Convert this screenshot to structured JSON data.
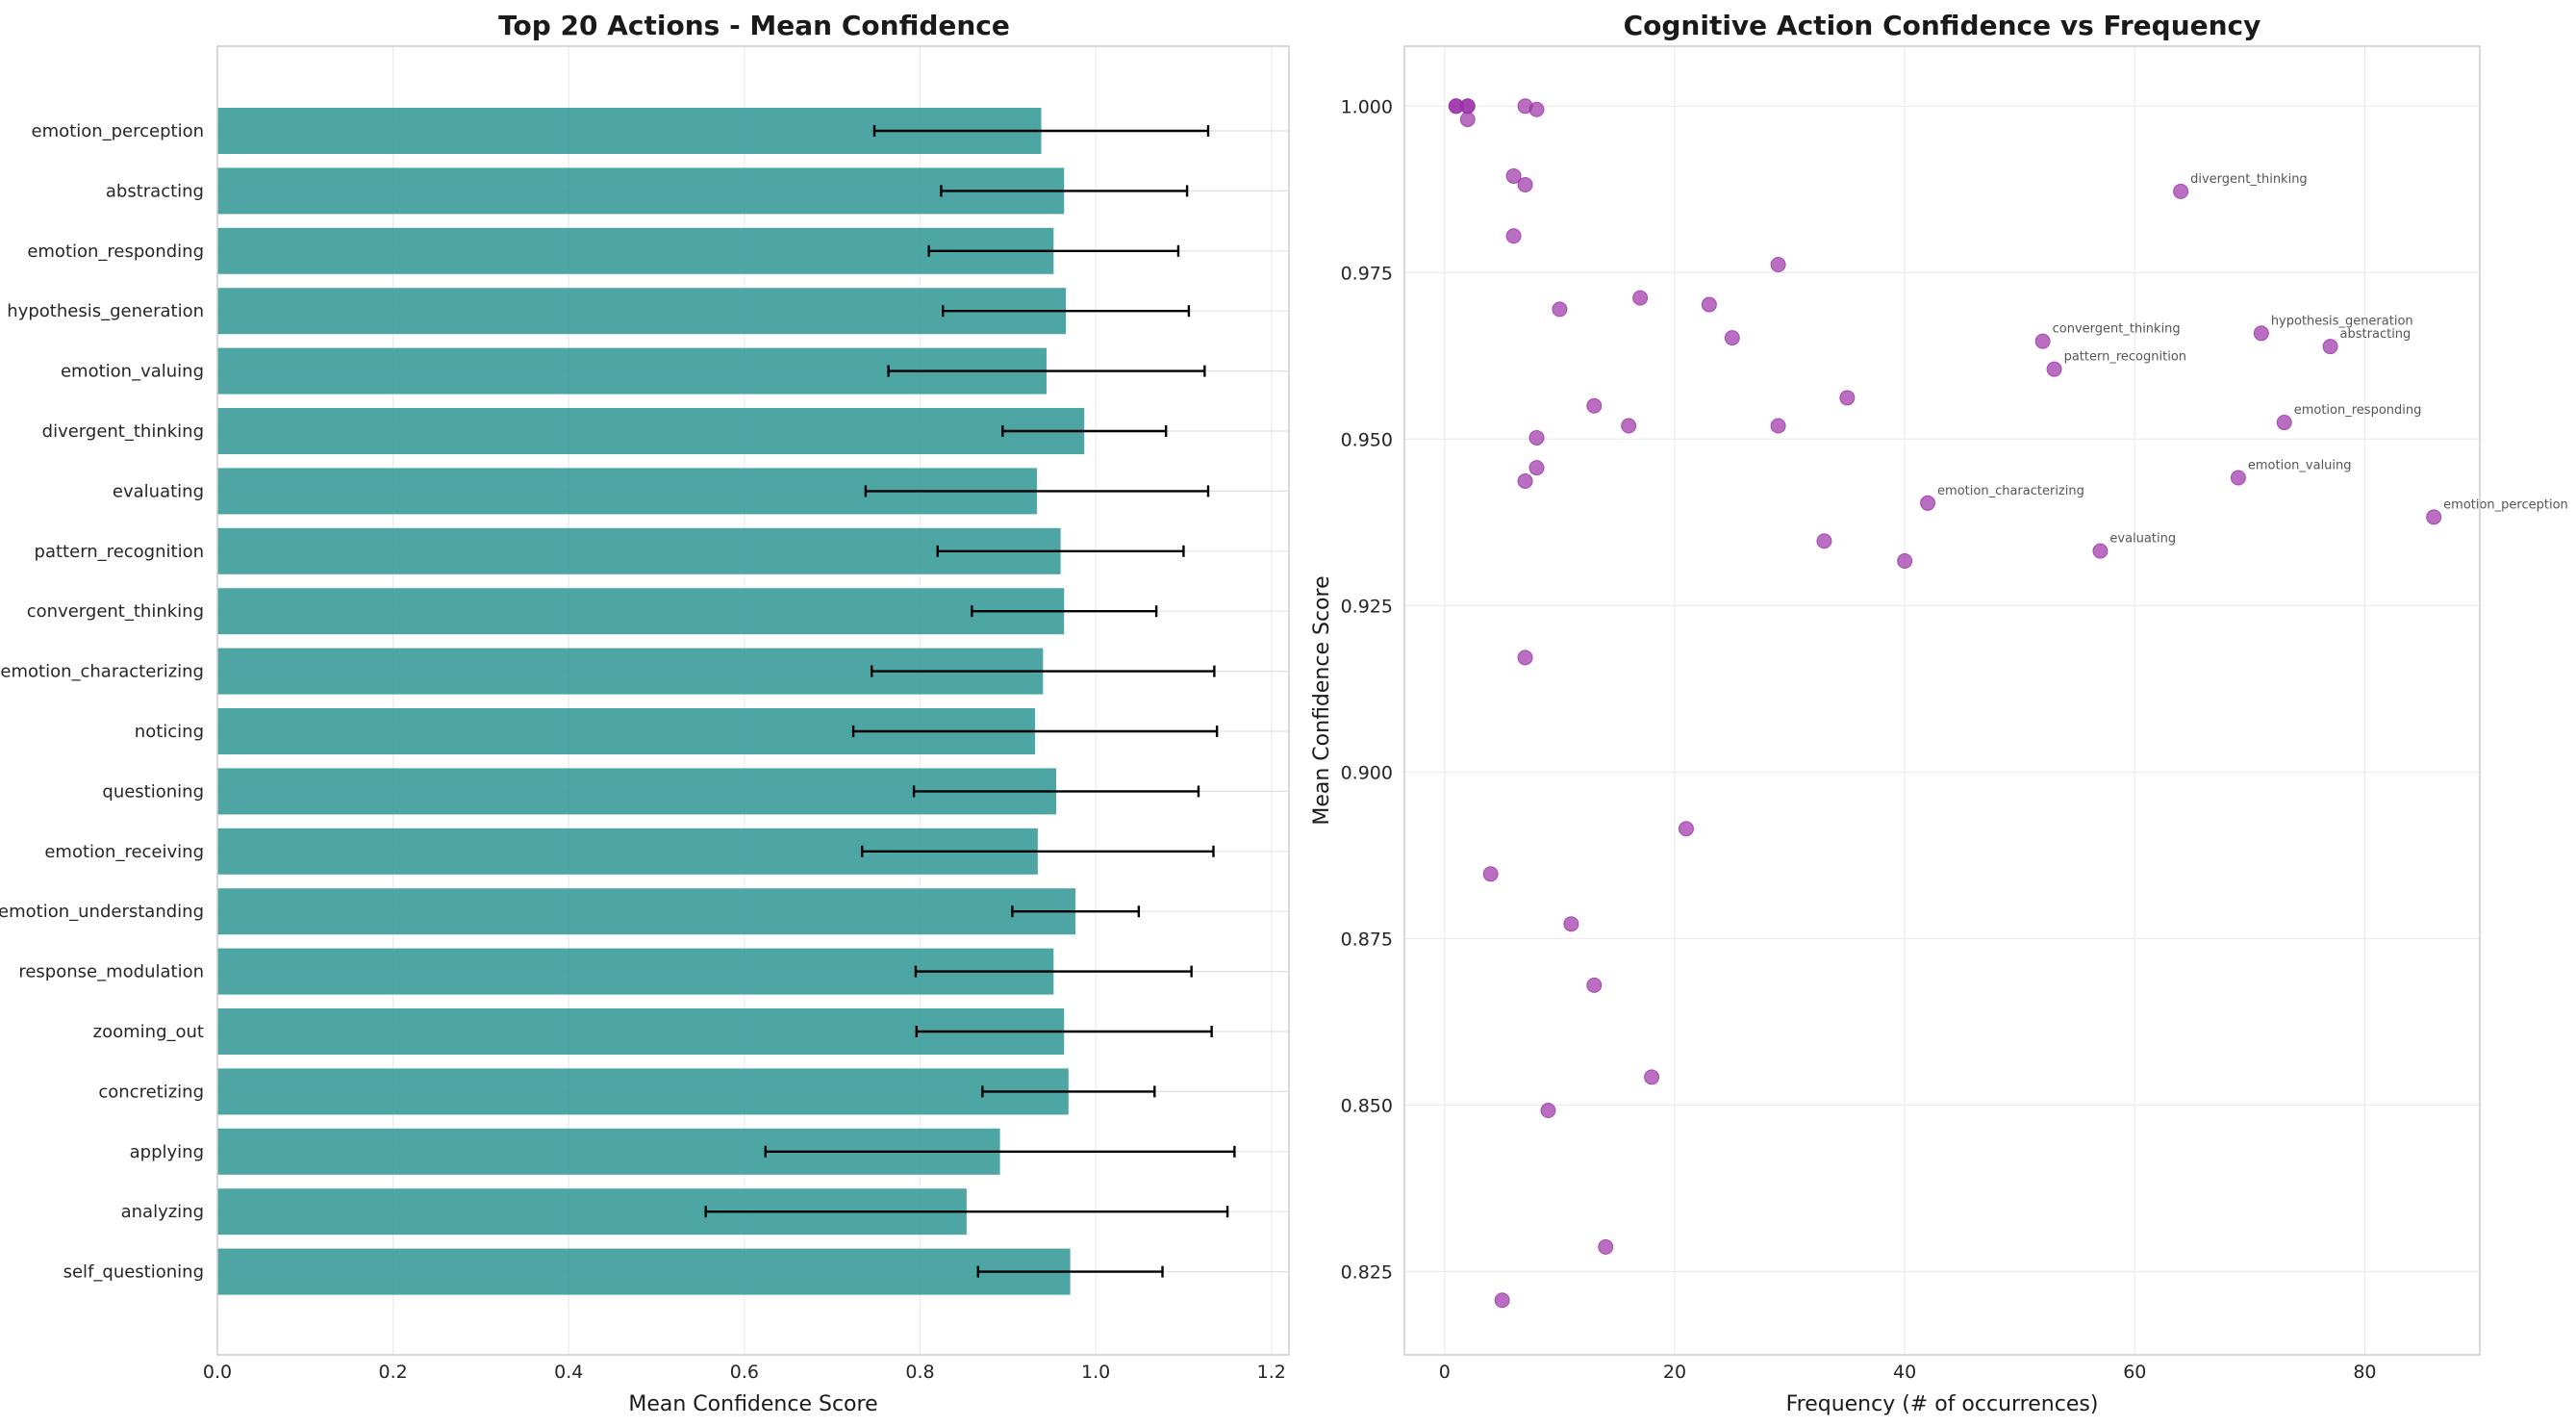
{
  "chart_data": [
    {
      "type": "bar",
      "orientation": "horizontal",
      "title": "Top 20 Actions - Mean Confidence",
      "xlabel": "Mean Confidence Score",
      "ylabel": "",
      "xlim": [
        0,
        1.22
      ],
      "xticks": [
        0.0,
        0.2,
        0.4,
        0.6,
        0.8,
        1.0,
        1.2
      ],
      "xtick_labels": [
        "0.0",
        "0.2",
        "0.4",
        "0.6",
        "0.8",
        "1.0",
        "1.2"
      ],
      "grid": true,
      "bar_color": "#3a9b9a",
      "categories": [
        "emotion_perception",
        "abstracting",
        "emotion_responding",
        "hypothesis_generation",
        "emotion_valuing",
        "divergent_thinking",
        "evaluating",
        "pattern_recognition",
        "convergent_thinking",
        "emotion_characterizing",
        "noticing",
        "questioning",
        "emotion_receiving",
        "emotion_understanding",
        "response_modulation",
        "zooming_out",
        "concretizing",
        "applying",
        "analyzing",
        "self_questioning"
      ],
      "values": [
        0.938,
        0.964,
        0.952,
        0.966,
        0.944,
        0.987,
        0.933,
        0.96,
        0.964,
        0.94,
        0.931,
        0.955,
        0.934,
        0.977,
        0.952,
        0.964,
        0.969,
        0.891,
        0.853,
        0.971
      ],
      "errors": [
        0.19,
        0.14,
        0.142,
        0.14,
        0.18,
        0.093,
        0.195,
        0.14,
        0.105,
        0.195,
        0.207,
        0.162,
        0.2,
        0.072,
        0.157,
        0.168,
        0.098,
        0.267,
        0.297,
        0.105
      ]
    },
    {
      "type": "scatter",
      "title": "Cognitive Action Confidence vs Frequency",
      "xlabel": "Frequency (# of occurrences)",
      "ylabel": "Mean Confidence Score",
      "xlim": [
        -3.5,
        90
      ],
      "ylim": [
        0.8125,
        1.009
      ],
      "xticks": [
        0,
        20,
        40,
        60,
        80
      ],
      "xtick_labels": [
        "0",
        "20",
        "40",
        "60",
        "80"
      ],
      "yticks": [
        0.825,
        0.85,
        0.875,
        0.9,
        0.925,
        0.95,
        0.975,
        1.0
      ],
      "ytick_labels": [
        "0.825",
        "0.850",
        "0.875",
        "0.900",
        "0.925",
        "0.950",
        "0.975",
        "1.000"
      ],
      "grid": true,
      "marker_color": "#9b30a8",
      "points": [
        {
          "x": 1,
          "y": 1.0
        },
        {
          "x": 2,
          "y": 1.0
        },
        {
          "x": 1,
          "y": 1.0
        },
        {
          "x": 2,
          "y": 1.0
        },
        {
          "x": 7,
          "y": 1.0
        },
        {
          "x": 8,
          "y": 0.9995
        },
        {
          "x": 2,
          "y": 0.998
        },
        {
          "x": 6,
          "y": 0.9895
        },
        {
          "x": 7,
          "y": 0.9882
        },
        {
          "x": 6,
          "y": 0.9805
        },
        {
          "x": 29,
          "y": 0.9762
        },
        {
          "x": 17,
          "y": 0.9712
        },
        {
          "x": 23,
          "y": 0.9702
        },
        {
          "x": 10,
          "y": 0.9695
        },
        {
          "x": 25,
          "y": 0.9652
        },
        {
          "x": 35,
          "y": 0.9562
        },
        {
          "x": 13,
          "y": 0.955
        },
        {
          "x": 16,
          "y": 0.952
        },
        {
          "x": 29,
          "y": 0.952
        },
        {
          "x": 8,
          "y": 0.9502
        },
        {
          "x": 8,
          "y": 0.9457
        },
        {
          "x": 7,
          "y": 0.9437
        },
        {
          "x": 33,
          "y": 0.9347
        },
        {
          "x": 40,
          "y": 0.9317
        },
        {
          "x": 7,
          "y": 0.9172
        },
        {
          "x": 21,
          "y": 0.8915
        },
        {
          "x": 4,
          "y": 0.8847
        },
        {
          "x": 11,
          "y": 0.8772
        },
        {
          "x": 13,
          "y": 0.868
        },
        {
          "x": 18,
          "y": 0.8542
        },
        {
          "x": 9,
          "y": 0.8492
        },
        {
          "x": 14,
          "y": 0.8287
        },
        {
          "x": 5,
          "y": 0.8207
        },
        {
          "x": 64,
          "y": 0.9872,
          "label": "divergent_thinking"
        },
        {
          "x": 52,
          "y": 0.9647,
          "label": "convergent_thinking"
        },
        {
          "x": 53,
          "y": 0.9605,
          "label": "pattern_recognition"
        },
        {
          "x": 71,
          "y": 0.9659,
          "label": "hypothesis_generation"
        },
        {
          "x": 77,
          "y": 0.9639,
          "label": "abstracting"
        },
        {
          "x": 73,
          "y": 0.9525,
          "label": "emotion_responding"
        },
        {
          "x": 69,
          "y": 0.9442,
          "label": "emotion_valuing"
        },
        {
          "x": 42,
          "y": 0.9404,
          "label": "emotion_characterizing"
        },
        {
          "x": 57,
          "y": 0.9332,
          "label": "evaluating"
        },
        {
          "x": 86,
          "y": 0.9383,
          "label": "emotion_perception"
        }
      ]
    }
  ]
}
